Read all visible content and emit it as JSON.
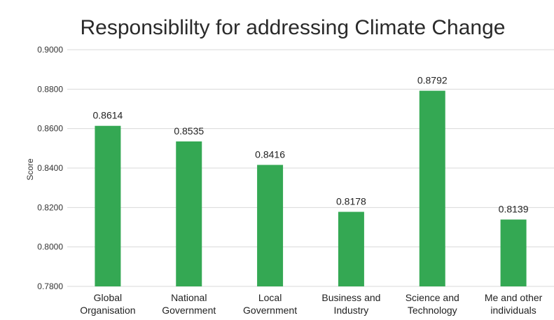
{
  "colors": {
    "bar": "#34a853",
    "plot_background": "#ffffff",
    "page_background": "#f1f1f1",
    "gridline": "#d9d9d9"
  },
  "chart_data": {
    "type": "bar",
    "title": "Responsiblilty for addressing Climate Change",
    "xlabel": "",
    "ylabel": "Score",
    "ylim": [
      0.78,
      0.9
    ],
    "yticks": [
      "0.7800",
      "0.8000",
      "0.8200",
      "0.8400",
      "0.8600",
      "0.8800",
      "0.9000"
    ],
    "grid": true,
    "legend": "none",
    "categories": [
      [
        "Global",
        "Organisation"
      ],
      [
        "National",
        "Government"
      ],
      [
        "Local",
        "Government"
      ],
      [
        "Business and",
        "Industry"
      ],
      [
        "Science and",
        "Technology"
      ],
      [
        "Me and other",
        "individuals"
      ]
    ],
    "values": [
      0.8614,
      0.8535,
      0.8416,
      0.8178,
      0.8792,
      0.8139
    ],
    "data_labels": [
      "0.8614",
      "0.8535",
      "0.8416",
      "0.8178",
      "0.8792",
      "0.8139"
    ]
  }
}
